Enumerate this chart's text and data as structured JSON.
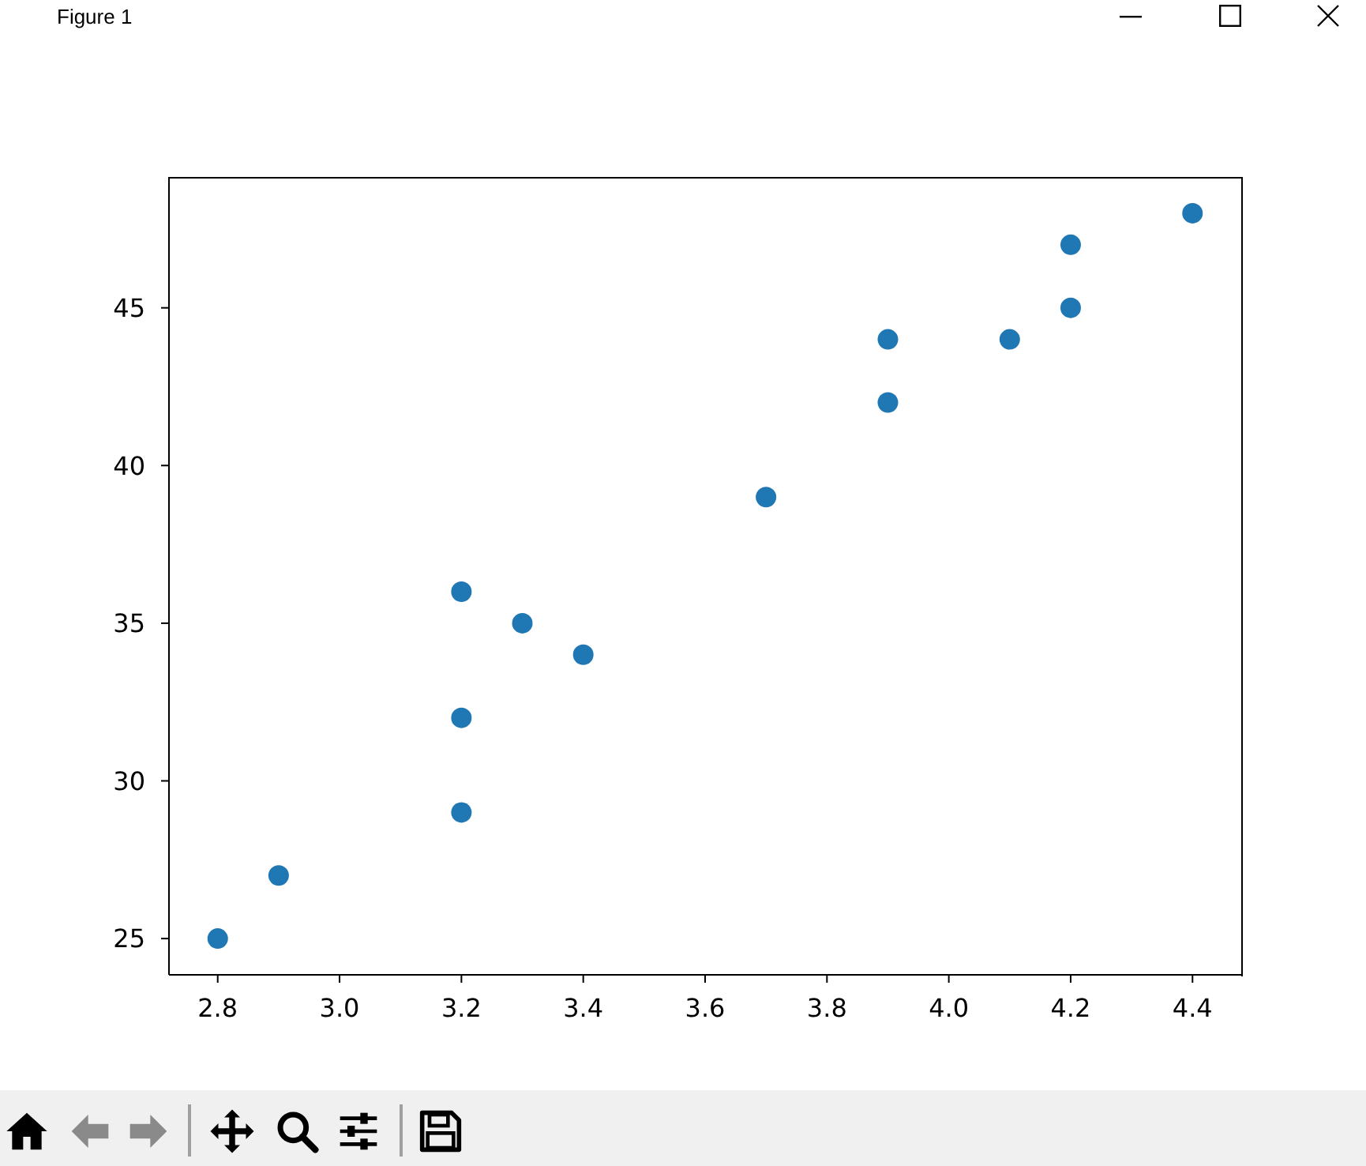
{
  "chart_data": {
    "type": "scatter",
    "annotations": [
      "Figure 1"
    ],
    "x": [
      2.8,
      2.9,
      3.2,
      3.2,
      3.2,
      3.3,
      3.4,
      3.7,
      3.9,
      3.9,
      4.1,
      4.2,
      4.2,
      4.4
    ],
    "series": [
      {
        "color": "#1f77b4",
        "values": [
          25,
          27,
          29,
          32,
          36,
          35,
          34,
          39,
          42,
          44,
          44,
          45,
          47,
          48
        ]
      }
    ],
    "xlim": [
      2.72,
      4.48
    ],
    "ylim": [
      23.85,
      49.15
    ],
    "xticks": [
      2.8,
      {
        "value": 3,
        "label": "3.0"
      },
      3.2,
      3.4,
      3.6,
      3.8,
      {
        "value": 4,
        "label": "4.0"
      },
      4.2,
      4.4
    ],
    "yticks": [
      25,
      30,
      35,
      40,
      45
    ],
    "marker": "circle"
  }
}
